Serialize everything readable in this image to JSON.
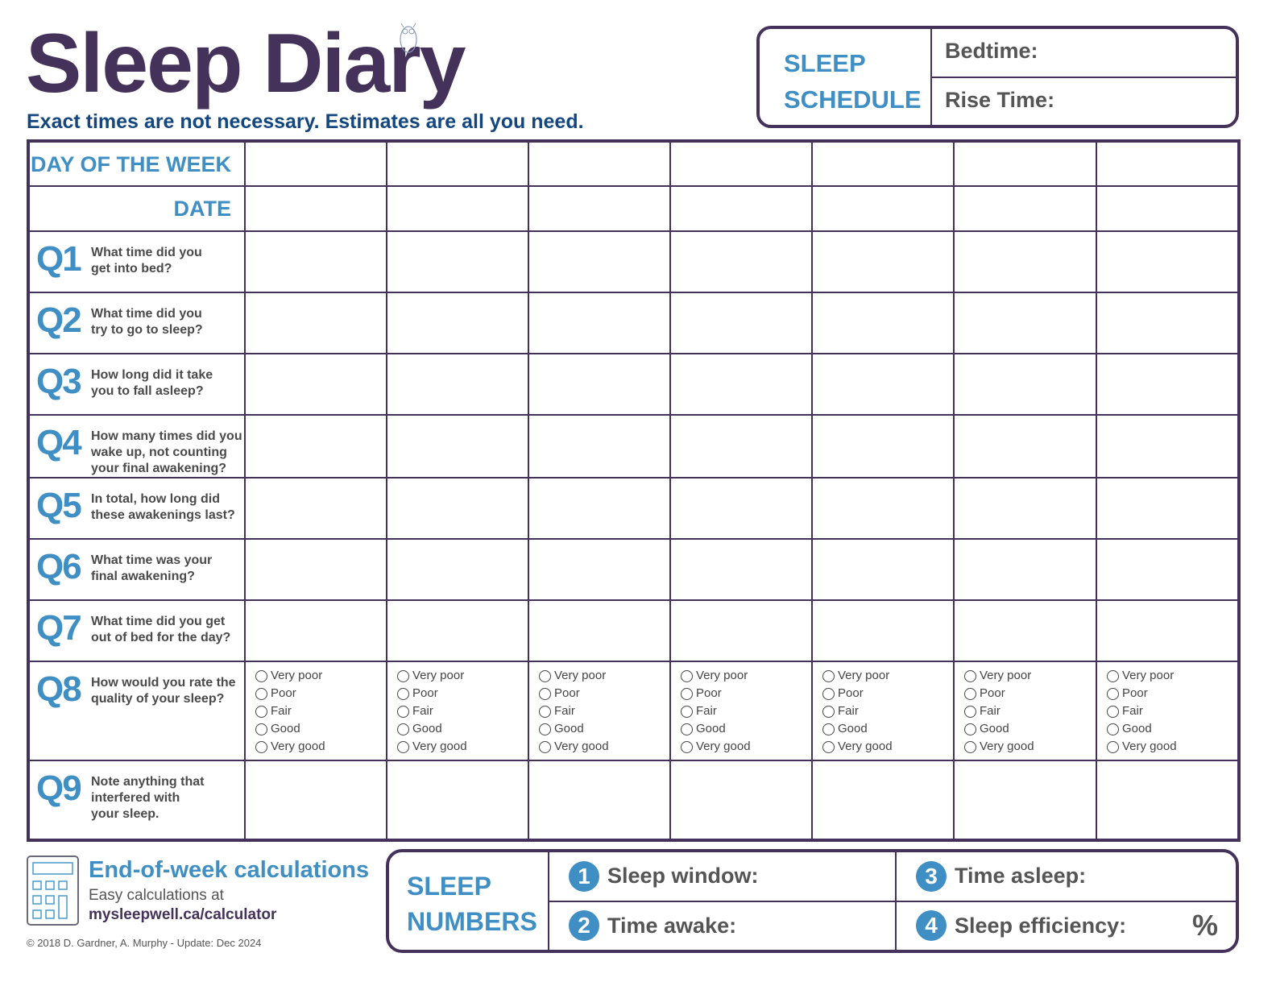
{
  "header": {
    "title": "Sleep Diary",
    "subtitle": "Exact times are not necessary. Estimates are all you need."
  },
  "schedule": {
    "label_line1": "SLEEP",
    "label_line2": "SCHEDULE",
    "bedtime": "Bedtime:",
    "rise_time": "Rise Time:"
  },
  "table": {
    "day_of_week": "DAY OF THE WEEK",
    "date": "DATE",
    "day_columns": 7,
    "questions": [
      {
        "num": "Q1",
        "text": [
          "What time did you",
          "get into bed?"
        ]
      },
      {
        "num": "Q2",
        "text": [
          "What time did you",
          "try to go to sleep?"
        ]
      },
      {
        "num": "Q3",
        "text": [
          "How long did it take",
          "you to fall asleep?"
        ]
      },
      {
        "num": "Q4",
        "text": [
          "How many times did you",
          "wake up, not counting",
          "your final awakening?"
        ]
      },
      {
        "num": "Q5",
        "text": [
          "In total, how long did",
          "these awakenings last?"
        ]
      },
      {
        "num": "Q6",
        "text": [
          "What time was your",
          "final awakening?"
        ]
      },
      {
        "num": "Q7",
        "text": [
          "What time did you get",
          "out of bed for the day?"
        ]
      },
      {
        "num": "Q8",
        "text": [
          "How would you rate the",
          "quality of your sleep?"
        ]
      },
      {
        "num": "Q9",
        "text": [
          "Note anything that",
          "interfered with",
          "your sleep."
        ]
      }
    ],
    "rating_options": [
      "Very poor",
      "Poor",
      "Fair",
      "Good",
      "Very good"
    ]
  },
  "footer": {
    "heading": "End-of-week calculations",
    "line": "Easy calculations at",
    "url": "mysleepwell.ca/calculator",
    "copyright": "© 2018 D. Gardner, A. Murphy - Update: Dec 2024"
  },
  "numbers": {
    "label_line1": "SLEEP",
    "label_line2": "NUMBERS",
    "items": [
      {
        "n": "1",
        "label": "Sleep window:"
      },
      {
        "n": "2",
        "label": "Time awake:"
      },
      {
        "n": "3",
        "label": "Time asleep:"
      },
      {
        "n": "4",
        "label": "Sleep efficiency:"
      }
    ],
    "percent": "%"
  },
  "colors": {
    "purple": "#45325a",
    "blue": "#3f8fc4",
    "navy": "#14477f"
  }
}
